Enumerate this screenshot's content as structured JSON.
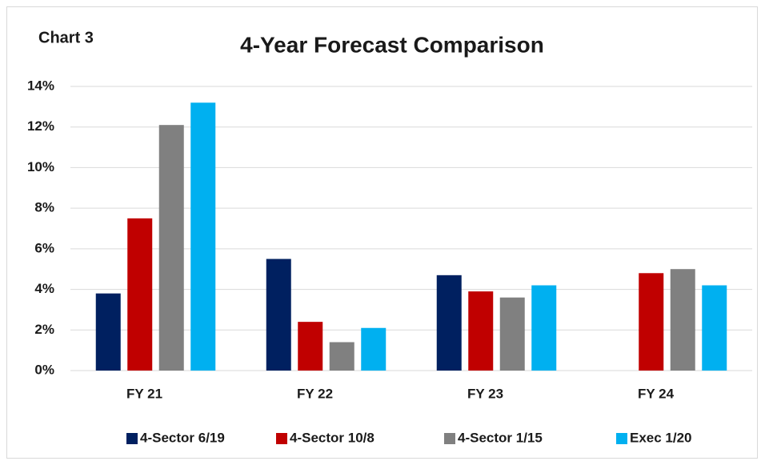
{
  "chart_data": {
    "type": "bar",
    "title": "4-Year Forecast Comparison",
    "annotation": "Chart 3",
    "categories": [
      "FY 21",
      "FY 22",
      "FY 23",
      "FY 24"
    ],
    "series": [
      {
        "name": "4-Sector 6/19",
        "color": "#002060",
        "values": [
          3.8,
          5.5,
          4.7,
          null
        ]
      },
      {
        "name": "4-Sector 10/8",
        "color": "#c00000",
        "values": [
          7.5,
          2.4,
          3.9,
          4.8
        ]
      },
      {
        "name": "4-Sector 1/15",
        "color": "#808080",
        "values": [
          12.1,
          1.4,
          3.6,
          5.0
        ]
      },
      {
        "name": "Exec 1/20",
        "color": "#00b0f0",
        "values": [
          13.2,
          2.1,
          4.2,
          4.2
        ]
      }
    ],
    "ylim": [
      0,
      14
    ],
    "yticks": [
      {
        "value": 0,
        "label": "0%"
      },
      {
        "value": 2,
        "label": "2%"
      },
      {
        "value": 4,
        "label": "4%"
      },
      {
        "value": 6,
        "label": "6%"
      },
      {
        "value": 8,
        "label": "8%"
      },
      {
        "value": 10,
        "label": "10%"
      },
      {
        "value": 12,
        "label": "12%"
      },
      {
        "value": 14,
        "label": "14%"
      }
    ],
    "grid": true,
    "legend": "bottom"
  }
}
